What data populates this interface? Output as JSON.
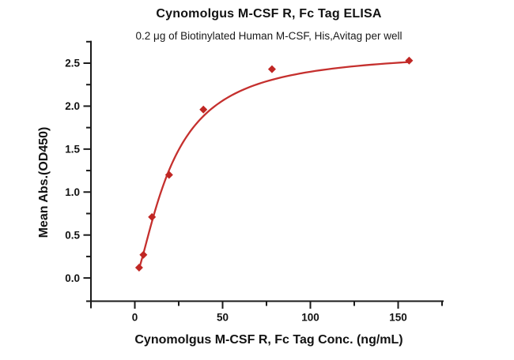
{
  "chart_data": {
    "type": "scatter",
    "title": "Cynomolgus M-CSF R, Fc Tag ELISA",
    "subtitle": "0.2 μg of Biotinylated Human M-CSF, His,Avitag per well",
    "xlabel": "Cynomolgus M-CSF R, Fc Tag Conc. (ng/mL)",
    "ylabel": "Mean Abs.(OD450)",
    "series": [
      {
        "name": "Cynomolgus M-CSF R, Fc Tag",
        "x": [
          2.44,
          4.88,
          9.77,
          19.53,
          39.06,
          78.13,
          156.25
        ],
        "y": [
          0.12,
          0.27,
          0.71,
          1.2,
          1.96,
          2.43,
          2.53
        ]
      }
    ],
    "fit_curve": {
      "model": "4PL",
      "bottom": 0,
      "top": 2.65,
      "ec50": 21,
      "hill": 1.45,
      "x_start": 2.44,
      "x_end": 156.25
    },
    "xlim": [
      -25,
      175
    ],
    "ylim": [
      -0.27,
      2.75
    ],
    "xticks": [
      0,
      50,
      100,
      150
    ],
    "xtick_labels": [
      "0",
      "50",
      "100",
      "150"
    ],
    "xticks_minor": [
      25,
      75,
      125,
      175
    ],
    "yticks": [
      0.0,
      0.5,
      1.0,
      1.5,
      2.0,
      2.5
    ],
    "ytick_labels": [
      "0.0",
      "0.5",
      "1.0",
      "1.5",
      "2.0",
      "2.5"
    ],
    "yticks_minor": [
      0.25,
      0.75,
      1.25,
      1.75,
      2.25,
      2.75
    ],
    "grid": false,
    "legend": "none",
    "marker": "diamond",
    "colors": {
      "line": "#c5302e",
      "marker": "#c02724",
      "axis": "#1a1a1a",
      "text": "#121212",
      "background": "#ffffff"
    }
  }
}
